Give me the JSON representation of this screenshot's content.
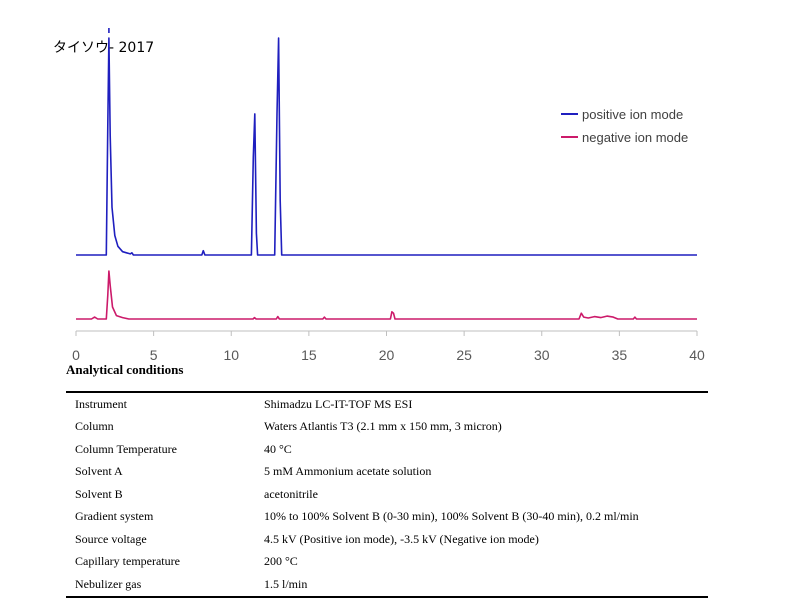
{
  "chart_data": {
    "type": "line",
    "title": "タイソウ- 2017",
    "xlabel": "",
    "ylabel": "",
    "xlim": [
      0,
      40
    ],
    "ylim": [
      0,
      1
    ],
    "x_ticks": [
      0,
      5,
      10,
      15,
      20,
      25,
      30,
      35,
      40
    ],
    "grid": false,
    "legend_position": "top-right",
    "series": [
      {
        "name": "positive ion mode",
        "color": "#1f1fbf",
        "points": [
          [
            0,
            0
          ],
          [
            1.95,
            0
          ],
          [
            2.05,
            0.6
          ],
          [
            2.12,
            1.0
          ],
          [
            2.2,
            0.55
          ],
          [
            2.32,
            0.22
          ],
          [
            2.5,
            0.09
          ],
          [
            2.7,
            0.04
          ],
          [
            3.0,
            0.015
          ],
          [
            3.5,
            0.005
          ],
          [
            3.6,
            0.01
          ],
          [
            3.7,
            0
          ],
          [
            8.1,
            0
          ],
          [
            8.2,
            0.02
          ],
          [
            8.3,
            0
          ],
          [
            11.3,
            0
          ],
          [
            11.42,
            0.45
          ],
          [
            11.52,
            0.65
          ],
          [
            11.62,
            0.1
          ],
          [
            11.7,
            0
          ],
          [
            12.8,
            0
          ],
          [
            12.95,
            0.65
          ],
          [
            13.05,
            1.0
          ],
          [
            13.15,
            0.25
          ],
          [
            13.25,
            0
          ],
          [
            40,
            0
          ]
        ]
      },
      {
        "name": "negative ion mode",
        "color": "#cc1a6a",
        "points": [
          [
            0,
            0
          ],
          [
            1.0,
            0
          ],
          [
            1.2,
            0.04
          ],
          [
            1.4,
            0
          ],
          [
            1.95,
            0
          ],
          [
            2.05,
            0.5
          ],
          [
            2.12,
            1.0
          ],
          [
            2.2,
            0.7
          ],
          [
            2.35,
            0.25
          ],
          [
            2.6,
            0.07
          ],
          [
            3.0,
            0.03
          ],
          [
            3.4,
            0
          ],
          [
            11.4,
            0
          ],
          [
            11.5,
            0.03
          ],
          [
            11.6,
            0
          ],
          [
            12.9,
            0
          ],
          [
            13.0,
            0.05
          ],
          [
            13.1,
            0
          ],
          [
            15.9,
            0
          ],
          [
            16.0,
            0.04
          ],
          [
            16.1,
            0
          ],
          [
            20.25,
            0
          ],
          [
            20.35,
            0.15
          ],
          [
            20.45,
            0.12
          ],
          [
            20.55,
            0
          ],
          [
            32.4,
            0
          ],
          [
            32.55,
            0.12
          ],
          [
            32.7,
            0.04
          ],
          [
            33.0,
            0.02
          ],
          [
            33.4,
            0.05
          ],
          [
            33.8,
            0.03
          ],
          [
            34.2,
            0.06
          ],
          [
            34.6,
            0.04
          ],
          [
            34.9,
            0
          ],
          [
            35.9,
            0
          ],
          [
            36.0,
            0.04
          ],
          [
            36.1,
            0
          ],
          [
            40,
            0
          ]
        ]
      }
    ]
  },
  "analytical_conditions": {
    "heading": "Analytical conditions",
    "rows": [
      [
        "Instrument",
        "Shimadzu LC-IT-TOF MS ESI"
      ],
      [
        "Column",
        "Waters Atlantis T3 (2.1 mm x 150 mm, 3 micron)"
      ],
      [
        "Column Temperature",
        "40 °C"
      ],
      [
        "Solvent A",
        "5 mM Ammonium acetate solution"
      ],
      [
        "Solvent B",
        "acetonitrile"
      ],
      [
        "Gradient system",
        "10% to 100% Solvent B (0-30 min), 100% Solvent B (30-40 min), 0.2 ml/min"
      ],
      [
        "Source voltage",
        "4.5 kV (Positive ion mode), -3.5 kV (Negative ion mode)"
      ],
      [
        "Capillary temperature",
        "200 °C"
      ],
      [
        "Nebulizer gas",
        "1.5 l/min"
      ]
    ]
  }
}
